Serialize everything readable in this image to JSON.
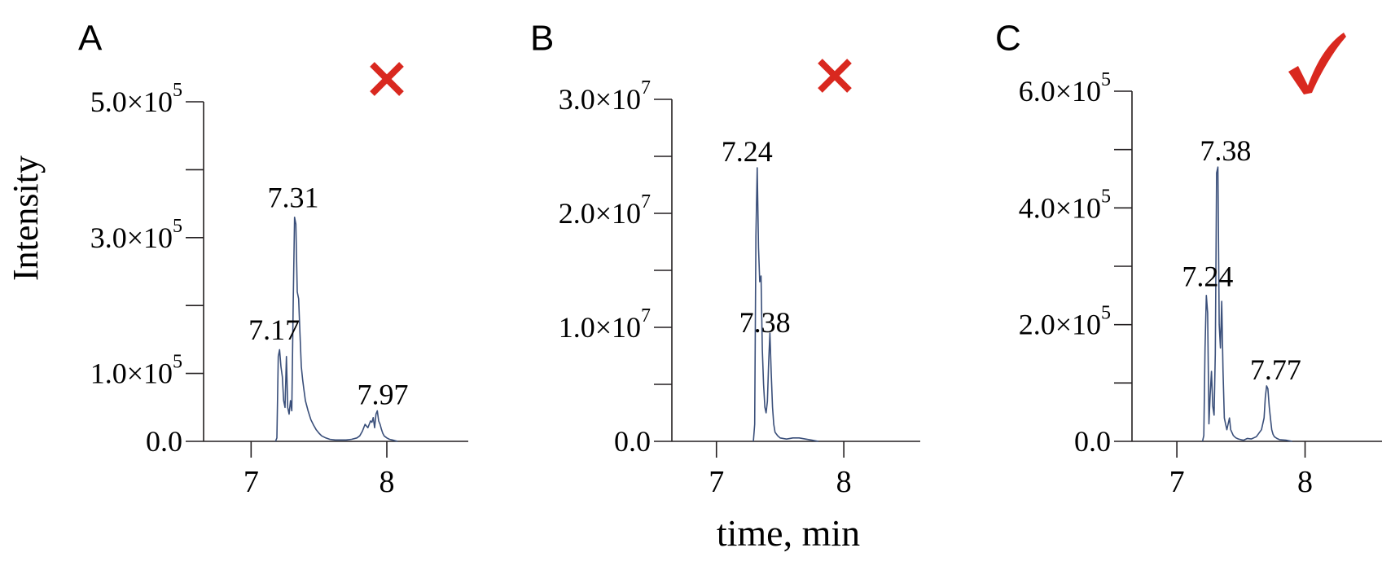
{
  "figure": {
    "ylabel": "Intensity",
    "xlabel": "time, min"
  },
  "colors": {
    "line": "#3a4f7a",
    "axis": "#231f20",
    "mark": "#d9281f"
  },
  "chart_data": [
    {
      "type": "line",
      "panel_label": "A",
      "mark": "cross",
      "mark_icon": "cross-icon",
      "xlim": [
        6.65,
        8.6
      ],
      "ylim": [
        0,
        500000
      ],
      "xticks": [
        7,
        8
      ],
      "xtick_labels": [
        "7",
        "8"
      ],
      "yticks": [
        0,
        100000,
        200000,
        300000,
        400000,
        500000
      ],
      "ytick_labels": [
        {
          "index": 0,
          "mantissa": "0.0",
          "exp": ""
        },
        {
          "index": 1,
          "mantissa": "1.0×10",
          "exp": "5"
        },
        {
          "index": 3,
          "mantissa": "3.0×10",
          "exp": "5"
        },
        {
          "index": 5,
          "mantissa": "5.0×10",
          "exp": "5"
        }
      ],
      "peak_labels": [
        {
          "x": 7.17,
          "y": 140000,
          "text": "7.17"
        },
        {
          "x": 7.31,
          "y": 335000,
          "text": "7.31"
        },
        {
          "x": 7.97,
          "y": 45000,
          "text": "7.97"
        }
      ],
      "series": [
        {
          "x": [
            7.18,
            7.19,
            7.2,
            7.21,
            7.22,
            7.23,
            7.24,
            7.25,
            7.26,
            7.27,
            7.28,
            7.29,
            7.3,
            7.31,
            7.32,
            7.33,
            7.34,
            7.35,
            7.36,
            7.37,
            7.38,
            7.39,
            7.4,
            7.42,
            7.44,
            7.46,
            7.48,
            7.5,
            7.52,
            7.55,
            7.58,
            7.62,
            7.66,
            7.7,
            7.74,
            7.78,
            7.8,
            7.82,
            7.84,
            7.86,
            7.88,
            7.89,
            7.9,
            7.91,
            7.92,
            7.93,
            7.94,
            7.95,
            7.96,
            7.97,
            7.98,
            8.0,
            8.02,
            8.04,
            8.06,
            8.08
          ],
          "y": [
            0,
            5000,
            125000,
            135000,
            110000,
            95000,
            60000,
            50000,
            125000,
            50000,
            40000,
            60000,
            45000,
            200000,
            330000,
            320000,
            220000,
            210000,
            160000,
            110000,
            90000,
            75000,
            60000,
            45000,
            32000,
            24000,
            17000,
            12000,
            8000,
            5000,
            3000,
            2000,
            2000,
            2000,
            3000,
            5000,
            8000,
            15000,
            25000,
            20000,
            30000,
            28000,
            35000,
            20000,
            40000,
            45000,
            30000,
            25000,
            18000,
            12000,
            8000,
            5000,
            3000,
            2000,
            1000,
            0
          ]
        }
      ]
    },
    {
      "type": "line",
      "panel_label": "B",
      "mark": "cross",
      "mark_icon": "cross-icon",
      "xlim": [
        6.65,
        8.6
      ],
      "ylim": [
        0,
        30000000
      ],
      "xticks": [
        7,
        8
      ],
      "xtick_labels": [
        "7",
        "8"
      ],
      "yticks": [
        0,
        5000000,
        10000000,
        15000000,
        20000000,
        25000000,
        30000000
      ],
      "ytick_labels": [
        {
          "index": 0,
          "mantissa": "0.0",
          "exp": ""
        },
        {
          "index": 2,
          "mantissa": "1.0×10",
          "exp": "7"
        },
        {
          "index": 4,
          "mantissa": "2.0×10",
          "exp": "7"
        },
        {
          "index": 6,
          "mantissa": "3.0×10",
          "exp": "7"
        }
      ],
      "peak_labels": [
        {
          "x": 7.24,
          "y": 24000000,
          "text": "7.24"
        },
        {
          "x": 7.38,
          "y": 9000000,
          "text": "7.38"
        }
      ],
      "series": [
        {
          "x": [
            7.29,
            7.3,
            7.31,
            7.32,
            7.33,
            7.34,
            7.35,
            7.36,
            7.37,
            7.38,
            7.39,
            7.4,
            7.41,
            7.42,
            7.43,
            7.44,
            7.45,
            7.46,
            7.48,
            7.5,
            7.55,
            7.6,
            7.65,
            7.7,
            7.75,
            7.8
          ],
          "y": [
            0,
            1500000,
            18000000,
            24000000,
            17000000,
            14000000,
            14500000,
            8000000,
            5000000,
            3000000,
            2500000,
            3500000,
            7000000,
            9500000,
            6000000,
            3000000,
            1500000,
            800000,
            500000,
            300000,
            200000,
            300000,
            300000,
            200000,
            100000,
            0
          ]
        }
      ]
    },
    {
      "type": "line",
      "panel_label": "C",
      "mark": "check",
      "mark_icon": "check-icon",
      "xlim": [
        6.65,
        8.6
      ],
      "ylim": [
        0,
        600000
      ],
      "xticks": [
        7,
        8
      ],
      "xtick_labels": [
        "7",
        "8"
      ],
      "yticks": [
        0,
        100000,
        200000,
        300000,
        400000,
        500000,
        600000
      ],
      "ytick_labels": [
        {
          "index": 0,
          "mantissa": "0.0",
          "exp": ""
        },
        {
          "index": 2,
          "mantissa": "2.0×10",
          "exp": "5"
        },
        {
          "index": 4,
          "mantissa": "4.0×10",
          "exp": "5"
        },
        {
          "index": 6,
          "mantissa": "6.0×10",
          "exp": "5"
        }
      ],
      "peak_labels": [
        {
          "x": 7.24,
          "y": 255000,
          "text": "7.24"
        },
        {
          "x": 7.38,
          "y": 470000,
          "text": "7.38"
        },
        {
          "x": 7.77,
          "y": 95000,
          "text": "7.77"
        }
      ],
      "series": [
        {
          "x": [
            7.2,
            7.21,
            7.22,
            7.23,
            7.24,
            7.25,
            7.26,
            7.27,
            7.28,
            7.29,
            7.3,
            7.31,
            7.32,
            7.33,
            7.34,
            7.35,
            7.36,
            7.37,
            7.38,
            7.39,
            7.4,
            7.41,
            7.42,
            7.44,
            7.46,
            7.48,
            7.5,
            7.52,
            7.55,
            7.58,
            7.62,
            7.66,
            7.68,
            7.69,
            7.7,
            7.71,
            7.72,
            7.73,
            7.74,
            7.75,
            7.76,
            7.78,
            7.8,
            7.85,
            7.9
          ],
          "y": [
            0,
            10000,
            160000,
            250000,
            220000,
            30000,
            80000,
            120000,
            60000,
            45000,
            150000,
            460000,
            470000,
            200000,
            160000,
            240000,
            120000,
            40000,
            30000,
            20000,
            30000,
            40000,
            20000,
            10000,
            6000,
            4000,
            3000,
            2000,
            5000,
            4000,
            8000,
            20000,
            40000,
            75000,
            95000,
            90000,
            60000,
            40000,
            20000,
            12000,
            8000,
            5000,
            3000,
            2000,
            0
          ]
        }
      ]
    }
  ]
}
